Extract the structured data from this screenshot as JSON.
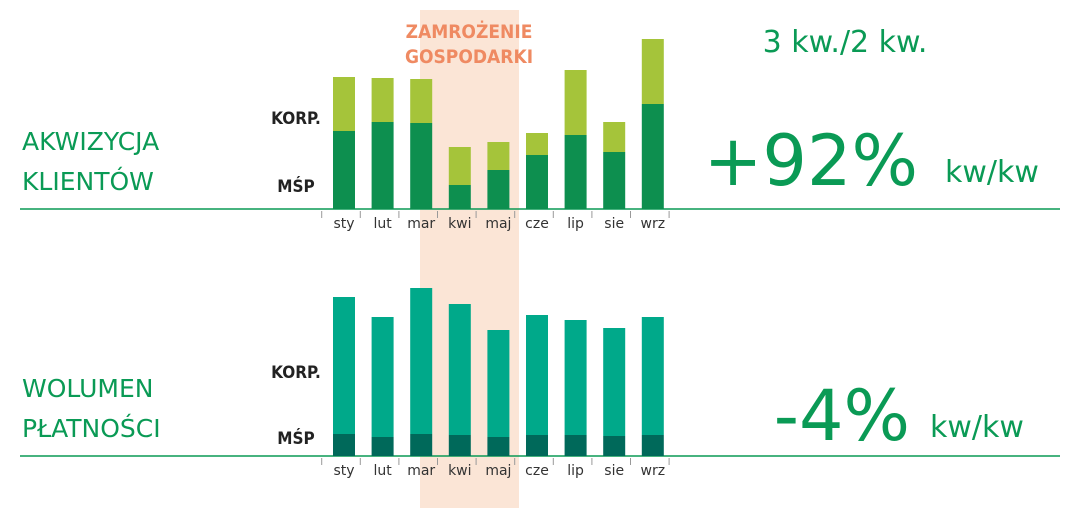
{
  "period": "3 kw./2 kw.",
  "annotation": [
    "ZAMROŻENIE",
    "GOSPODARKI"
  ],
  "chart_data": [
    {
      "type": "stacked-bar",
      "title": [
        "AKWIZYCJA",
        "KLIENTÓW"
      ],
      "change": "+92%",
      "change_unit": "kw/kw",
      "categories": [
        "sty",
        "lut",
        "mar",
        "kwi",
        "maj",
        "cze",
        "lip",
        "sie",
        "wrz"
      ],
      "series": [
        {
          "name": "MŚP",
          "color": "#0d8f4f",
          "values": [
            78,
            87,
            86,
            24,
            39,
            54,
            74,
            57,
            105
          ]
        },
        {
          "name": "KORP.",
          "color": "#a5c43a",
          "values": [
            54,
            44,
            44,
            38,
            28,
            22,
            65,
            30,
            65
          ]
        }
      ],
      "ylim": [
        0,
        170
      ]
    },
    {
      "type": "stacked-bar",
      "title": [
        "WOLUMEN",
        "PŁATNOŚCI"
      ],
      "change": "-4%",
      "change_unit": "kw/kw",
      "categories": [
        "sty",
        "lut",
        "mar",
        "kwi",
        "maj",
        "cze",
        "lip",
        "sie",
        "wrz"
      ],
      "series": [
        {
          "name": "MŚP",
          "color": "#00695a",
          "values": [
            22,
            19,
            22,
            21,
            19,
            21,
            21,
            20,
            21
          ]
        },
        {
          "name": "KORP.",
          "color": "#00a98a",
          "values": [
            137,
            120,
            146,
            131,
            107,
            120,
            115,
            108,
            118
          ]
        }
      ],
      "ylim": [
        0,
        168
      ]
    }
  ]
}
